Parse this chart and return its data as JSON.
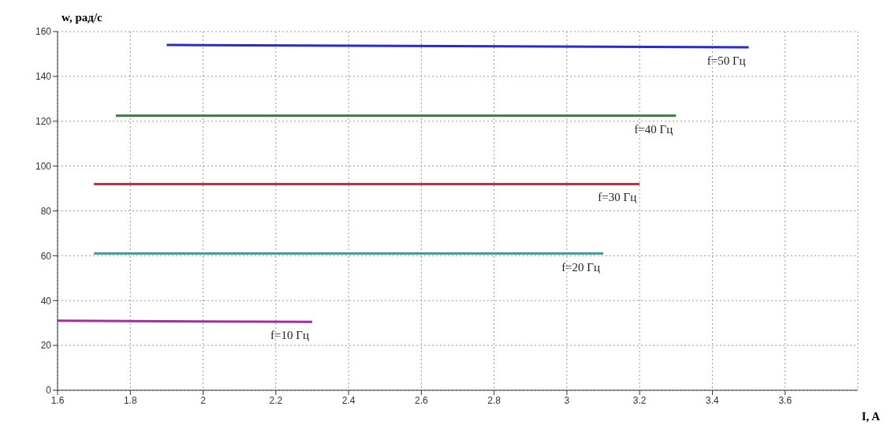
{
  "chart_data": {
    "type": "line",
    "xlabel": "I, A",
    "ylabel": "w, рад/с",
    "xlim": [
      1.6,
      3.8
    ],
    "xticks": [
      1.6,
      1.8,
      2,
      2.2,
      2.4,
      2.6,
      2.8,
      3,
      3.2,
      3.4,
      3.6
    ],
    "ylim": [
      0,
      160
    ],
    "yticks": [
      0,
      20,
      40,
      60,
      80,
      100,
      120,
      140,
      160
    ],
    "grid": true,
    "marker": "none",
    "line_style": "solid",
    "series": [
      {
        "name": "f=50 Гц",
        "color": "#2b2bcc",
        "x": [
          1.9,
          3.5
        ],
        "values": [
          154,
          153
        ]
      },
      {
        "name": "f=40 Гц",
        "color": "#3a7a3a",
        "x": [
          1.76,
          3.3
        ],
        "values": [
          122.5,
          122.5
        ]
      },
      {
        "name": "f=30 Гц",
        "color": "#c0304a",
        "x": [
          1.7,
          3.2
        ],
        "values": [
          92,
          92
        ]
      },
      {
        "name": "f=20 Гц",
        "color": "#3aa0a0",
        "x": [
          1.7,
          3.1
        ],
        "values": [
          61,
          61
        ]
      },
      {
        "name": "f=10 Гц",
        "color": "#a030a0",
        "x": [
          1.6,
          2.3
        ],
        "values": [
          31,
          30.5
        ]
      }
    ]
  }
}
